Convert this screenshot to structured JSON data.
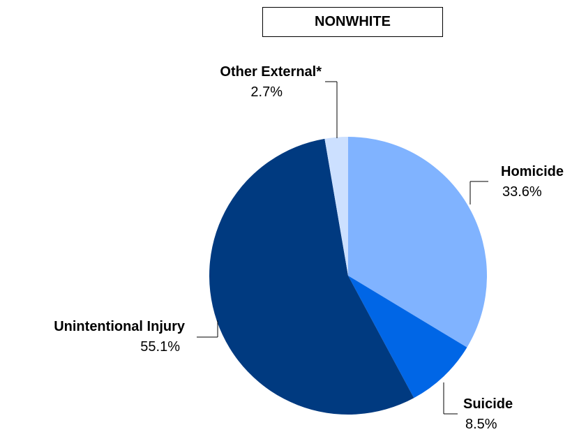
{
  "chart_data": {
    "type": "pie",
    "title": "NONWHITE",
    "slices": [
      {
        "label": "Homicide",
        "value": 33.6,
        "display": "33.6%",
        "color": "#80B3FF"
      },
      {
        "label": "Suicide",
        "value": 8.5,
        "display": "8.5%",
        "color": "#0066E6"
      },
      {
        "label": "Unintentional Injury",
        "value": 55.1,
        "display": "55.1%",
        "color": "#003A80"
      },
      {
        "label": "Other External*",
        "value": 2.7,
        "display": "2.7%",
        "color": "#CCE0FF"
      }
    ]
  }
}
